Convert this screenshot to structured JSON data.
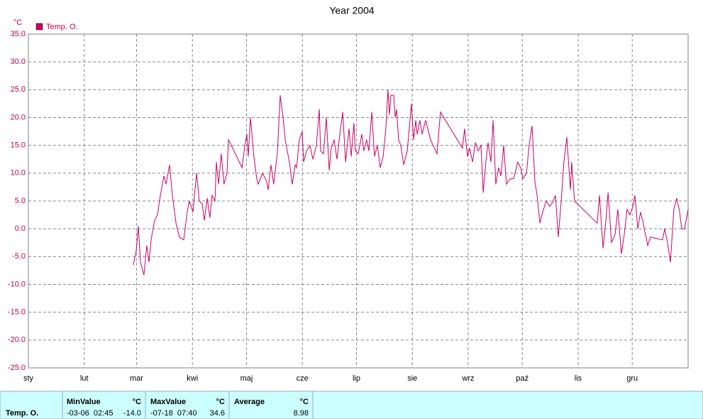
{
  "chart_data": {
    "type": "line",
    "title": "Year 2004",
    "y_unit": "°C",
    "xlim": [
      0,
      366
    ],
    "xticks": [
      {
        "value": 0,
        "label": "sty"
      },
      {
        "value": 31,
        "label": "lut"
      },
      {
        "value": 60,
        "label": "mar"
      },
      {
        "value": 91,
        "label": "kwi"
      },
      {
        "value": 121,
        "label": "maj"
      },
      {
        "value": 152,
        "label": "cze"
      },
      {
        "value": 182,
        "label": "lip"
      },
      {
        "value": 213,
        "label": "sie"
      },
      {
        "value": 244,
        "label": "wrz"
      },
      {
        "value": 274,
        "label": "paź"
      },
      {
        "value": 305,
        "label": "lis"
      },
      {
        "value": 335,
        "label": "gru"
      }
    ],
    "ylim": [
      -25,
      35
    ],
    "yticks": [
      {
        "value": 35,
        "label": "35.0"
      },
      {
        "value": 30,
        "label": "30.0"
      },
      {
        "value": 25,
        "label": "25.0"
      },
      {
        "value": 20,
        "label": "20.0"
      },
      {
        "value": 15,
        "label": "15.0"
      },
      {
        "value": 10,
        "label": "10.0"
      },
      {
        "value": 5,
        "label": "5.0"
      },
      {
        "value": 0,
        "label": "0.0"
      },
      {
        "value": -5,
        "label": "-5.0"
      },
      {
        "value": -10,
        "label": "-10.0"
      },
      {
        "value": -15,
        "label": "-15.0"
      },
      {
        "value": -20,
        "label": "-20.0"
      },
      {
        "value": -25,
        "label": "-25.0"
      }
    ],
    "grid": true,
    "legend": "top-left",
    "x": [
      58.2,
      59.8,
      61,
      62.2,
      64.1,
      65.7,
      66.9,
      68.1,
      70,
      71.6,
      73.2,
      75.2,
      76.4,
      78.3,
      79.9,
      81.9,
      83.8,
      86.2,
      88.1,
      89.3,
      91.3,
      93.3,
      94.8,
      96.4,
      97.6,
      99.2,
      100.7,
      101.9,
      103.5,
      104.3,
      105.5,
      107,
      108.5,
      110.2,
      111,
      112.6,
      118.5,
      120.1,
      121.2,
      122,
      123.2,
      125.1,
      126.7,
      127.5,
      129.9,
      132.2,
      133,
      134.6,
      136.1,
      138.1,
      139.7,
      141.3,
      142.5,
      144.8,
      146.4,
      148,
      148.8,
      150.3,
      151.9,
      152.7,
      154.3,
      156.2,
      157.8,
      159.8,
      161.4,
      162.1,
      163.7,
      165.3,
      166.9,
      168,
      169.6,
      171.2,
      172.8,
      174.4,
      176,
      177.9,
      179.1,
      180.6,
      181.4,
      183,
      185,
      186.1,
      187.7,
      188.9,
      190.5,
      192,
      193.6,
      195.2,
      196.8,
      198.3,
      199.5,
      200.3,
      201.1,
      202.7,
      203.5,
      204.3,
      205.4,
      206.6,
      208.2,
      210.2,
      212.5,
      213.7,
      214.9,
      215.7,
      217.2,
      218.4,
      220.4,
      223.1,
      226.7,
      228.6,
      240.8,
      242,
      243.6,
      244.8,
      246.4,
      248,
      249.5,
      251.1,
      252.3,
      253.8,
      255,
      256.6,
      257.8,
      259.3,
      260.9,
      262.1,
      263.7,
      265.2,
      267.2,
      269.2,
      271.5,
      273.1,
      274.3,
      276.3,
      277.8,
      279.4,
      281,
      282.2,
      283.8,
      285.3,
      287.3,
      289.3,
      291.2,
      292.4,
      294,
      295.6,
      297.1,
      298.7,
      300.7,
      301.4,
      303,
      315.6,
      316.8,
      318.8,
      320.4,
      321.6,
      323.5,
      325.5,
      327,
      329,
      330.6,
      332.1,
      333.7,
      335.3,
      336.5,
      338.1,
      339.6,
      340.8,
      342,
      343.6,
      345.1,
      351.8,
      353,
      354.6,
      356.2,
      358.1,
      359.7,
      361.3,
      362.4,
      364,
      366
    ],
    "series": [
      {
        "name": "Temp. O.",
        "color": "#cc0066",
        "values": [
          -6.5,
          -4,
          0.5,
          -6,
          -8.3,
          -3,
          -6,
          -2,
          1.5,
          2.5,
          6,
          9.5,
          8,
          11.5,
          6,
          1,
          -1.5,
          -2,
          3,
          5,
          3,
          10,
          5,
          4.5,
          1.5,
          5.5,
          2,
          6,
          5,
          12,
          8,
          13.5,
          8,
          10,
          16,
          15,
          11,
          15,
          17,
          13,
          20,
          13,
          9,
          8,
          10,
          8.5,
          7,
          11.5,
          8,
          13.5,
          24,
          20,
          16,
          12,
          8,
          11.5,
          11,
          16,
          17.5,
          12,
          14,
          15,
          12.5,
          15,
          21.5,
          14,
          13.5,
          20,
          10.5,
          14.5,
          16,
          12.5,
          17,
          21,
          12,
          18,
          13,
          19,
          14,
          13.5,
          17,
          14,
          16,
          14,
          21,
          13,
          15,
          11,
          13,
          18,
          25,
          20.5,
          24,
          24,
          20,
          21.5,
          16,
          15,
          11.5,
          14,
          22.5,
          16,
          19.5,
          17,
          19.5,
          17,
          19.5,
          16,
          13.5,
          21,
          14.5,
          18,
          13,
          14.5,
          12,
          15.5,
          14,
          15,
          6.5,
          12,
          15.5,
          12,
          19.5,
          8,
          11,
          9.5,
          15,
          8,
          9,
          9,
          12,
          11,
          9,
          10,
          15,
          18.5,
          8.5,
          6,
          1,
          3,
          5,
          4,
          5,
          6,
          -1.5,
          5,
          12,
          16.5,
          7,
          12,
          5,
          1,
          6,
          -3.5,
          1.5,
          6.5,
          -2.5,
          -1,
          3.5,
          -4.5,
          -1,
          3.5,
          2.5,
          4,
          6,
          0,
          3,
          1.5,
          -0.5,
          -3,
          -1.5,
          -2,
          0,
          -2.5,
          -6,
          3.5,
          5.5,
          3,
          0,
          0,
          3.5
        ]
      }
    ]
  },
  "stats": {
    "row_label": "Temp. O.",
    "columns": [
      {
        "header": "MinValue",
        "unit": "°C",
        "time": "-03-06  02:45",
        "value": "-14.0"
      },
      {
        "header": "MaxValue",
        "unit": "°C",
        "time": "-07-18  07:40",
        "value": "34.6"
      },
      {
        "header": "Average",
        "unit": "°C",
        "value": "8.98"
      }
    ]
  }
}
